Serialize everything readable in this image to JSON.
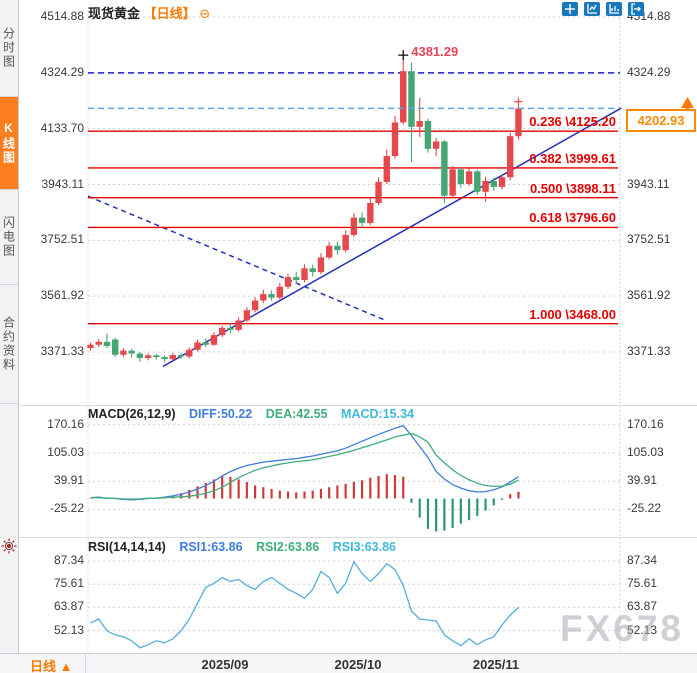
{
  "app": {
    "sidebar": {
      "items": [
        {
          "label": "分时图",
          "active": false
        },
        {
          "label": "K线图",
          "active": true
        },
        {
          "label": "闪电图",
          "active": false
        },
        {
          "label": "合约资料",
          "active": false
        }
      ]
    },
    "header": {
      "symbol": "现货黄金",
      "period": "【日线】",
      "collapse_icon": "⊖"
    },
    "toolbar_icons": [
      "move-icon",
      "axis-scale-icon",
      "axis-fit-icon",
      "exit-right-icon"
    ],
    "price_marker": {
      "value": "4202.93"
    },
    "bottom_bar": {
      "period_label": "日线",
      "period_arrow": "▲"
    },
    "watermark": "FX678",
    "colors": {
      "up": "#e5484d",
      "down": "#44a673",
      "accent": "#ff7a00",
      "fib": "#e60000",
      "navy_line": "#1f1fd0",
      "current_line": "#58a6e8",
      "diff_line": "#3f7de0",
      "dea_line": "#3eae7c",
      "rsi_line": "#54aede",
      "hist_pos": "#cc3b3b",
      "hist_neg": "#2f9478"
    }
  },
  "chart_data": {
    "type": "candlestick",
    "title": "现货黄金 日线",
    "price_axis": {
      "ticks": [
        4514.88,
        4324.29,
        4133.7,
        3943.11,
        3752.51,
        3561.92,
        3371.33
      ],
      "ylim": [
        3371.33,
        4514.88
      ]
    },
    "x_axis": {
      "labels": [
        "2025/09",
        "2025/10",
        "2025/11"
      ]
    },
    "candles": [
      [
        3385,
        3404,
        3376,
        3396
      ],
      [
        3396,
        3416,
        3388,
        3406
      ],
      [
        3406,
        3434,
        3384,
        3392
      ],
      [
        3414,
        3420,
        3355,
        3362
      ],
      [
        3362,
        3385,
        3356,
        3376
      ],
      [
        3376,
        3382,
        3352,
        3366
      ],
      [
        3366,
        3372,
        3338,
        3351
      ],
      [
        3351,
        3367,
        3343,
        3360
      ],
      [
        3360,
        3365,
        3345,
        3354
      ],
      [
        3354,
        3360,
        3336,
        3347
      ],
      [
        3347,
        3369,
        3341,
        3361
      ],
      [
        3361,
        3367,
        3348,
        3356
      ],
      [
        3356,
        3387,
        3350,
        3379
      ],
      [
        3379,
        3414,
        3373,
        3404
      ],
      [
        3404,
        3417,
        3389,
        3396
      ],
      [
        3396,
        3439,
        3392,
        3429
      ],
      [
        3429,
        3461,
        3422,
        3454
      ],
      [
        3454,
        3469,
        3437,
        3447
      ],
      [
        3447,
        3489,
        3441,
        3479
      ],
      [
        3479,
        3524,
        3473,
        3514
      ],
      [
        3514,
        3559,
        3507,
        3547
      ],
      [
        3547,
        3584,
        3539,
        3569
      ],
      [
        3569,
        3581,
        3547,
        3557
      ],
      [
        3557,
        3607,
        3551,
        3594
      ],
      [
        3594,
        3639,
        3587,
        3627
      ],
      [
        3627,
        3644,
        3604,
        3617
      ],
      [
        3617,
        3671,
        3609,
        3657
      ],
      [
        3657,
        3669,
        3629,
        3644
      ],
      [
        3644,
        3709,
        3637,
        3694
      ],
      [
        3694,
        3747,
        3687,
        3734
      ],
      [
        3734,
        3749,
        3704,
        3719
      ],
      [
        3719,
        3787,
        3711,
        3771
      ],
      [
        3771,
        3845,
        3764,
        3830
      ],
      [
        3830,
        3848,
        3795,
        3812
      ],
      [
        3812,
        3895,
        3805,
        3880
      ],
      [
        3880,
        3968,
        3872,
        3952
      ],
      [
        3952,
        4062,
        3944,
        4040
      ],
      [
        4040,
        4178,
        4032,
        4155
      ],
      [
        4155,
        4381.29,
        4148,
        4330
      ],
      [
        4330,
        4360,
        4020,
        4140
      ],
      [
        4140,
        4238,
        4105,
        4160
      ],
      [
        4160,
        4168,
        4052,
        4065
      ],
      [
        4065,
        4102,
        4040,
        4090
      ],
      [
        4090,
        4095,
        3880,
        3905
      ],
      [
        3905,
        4006,
        3896,
        3995
      ],
      [
        3995,
        4002,
        3932,
        3945
      ],
      [
        3945,
        3998,
        3938,
        3988
      ],
      [
        3988,
        3994,
        3908,
        3918
      ],
      [
        3918,
        3970,
        3884,
        3955
      ],
      [
        3955,
        3966,
        3922,
        3935
      ],
      [
        3935,
        3978,
        3926,
        3968
      ],
      [
        3968,
        4120,
        3958,
        4108
      ],
      [
        4108,
        4212,
        4096,
        4202.93
      ]
    ],
    "fib_levels": [
      {
        "label": "0.236 \\4125.20",
        "price": 4125.2
      },
      {
        "label": "0.382 \\3999.61",
        "price": 3999.61
      },
      {
        "label": "0.500 \\3898.11",
        "price": 3898.11
      },
      {
        "label": "0.618 \\3796.60",
        "price": 3796.6
      },
      {
        "label": "1.000 \\3468.00",
        "price": 3468.0
      }
    ],
    "levels": {
      "navy_dashed_price": 4324.29,
      "current_price": 4202.93
    },
    "peak_annotation": {
      "text": "4381.29",
      "index": 38,
      "price": 4381.29
    },
    "trendlines": [
      {
        "style": "solid",
        "from": {
          "index": 8.8,
          "price": 3322
        },
        "to": {
          "index": 64.5,
          "price": 4204
        }
      },
      {
        "style": "dashed",
        "from": {
          "index": -0.3,
          "price": 3903
        },
        "to": {
          "index": 35.8,
          "price": 3480
        }
      }
    ],
    "macd": {
      "legend": {
        "name": "MACD(26,12,9)",
        "diff": "DIFF:50.22",
        "dea": "DEA:42.55",
        "macd": "MACD:15.34"
      },
      "axis_ticks": [
        170.16,
        105.03,
        39.91,
        -25.22
      ],
      "diff": [
        2,
        3,
        1,
        0,
        -2,
        -3,
        -2,
        0,
        1,
        3,
        6,
        10,
        15,
        22,
        30,
        40,
        52,
        62,
        70,
        76,
        80,
        84,
        86,
        88,
        90,
        92,
        95,
        98,
        102,
        106,
        110,
        116,
        124,
        132,
        140,
        148,
        155,
        162,
        168,
        145,
        120,
        95,
        62,
        45,
        32,
        24,
        18,
        15,
        16,
        20,
        27,
        38,
        50.22
      ],
      "dea": [
        1.5,
        2,
        0.5,
        0.5,
        -1,
        -1.5,
        -1,
        0.5,
        0.5,
        2,
        3,
        4,
        5,
        8,
        12,
        18,
        26,
        37,
        48,
        57,
        65,
        71,
        75,
        79,
        82,
        85,
        87,
        89,
        93,
        97,
        101,
        106,
        111,
        117,
        123,
        129,
        135,
        142,
        146,
        150,
        142,
        130,
        100,
        82,
        66,
        53,
        43,
        35,
        30,
        28,
        28.5,
        33,
        42.55
      ],
      "hist": [
        1,
        2,
        1,
        -1,
        -2,
        -3,
        -2,
        -1,
        1,
        2,
        6,
        12,
        20,
        28,
        36,
        44,
        52,
        50,
        44,
        38,
        30,
        26,
        22,
        18,
        16,
        14,
        16,
        18,
        22,
        26,
        30,
        34,
        38,
        42,
        48,
        52,
        56,
        54,
        50,
        -10,
        -44,
        -70,
        -76,
        -74,
        -68,
        -58,
        -50,
        -40,
        -28,
        -16,
        -3,
        10,
        15.34
      ]
    },
    "rsi": {
      "legend": {
        "name": "RSI(14,14,14)",
        "rsi1": "RSI1:63.86",
        "rsi2": "RSI2:63.86",
        "rsi3": "RSI3:63.86"
      },
      "axis_ticks": [
        87.34,
        75.61,
        63.87,
        52.13
      ],
      "values": [
        56,
        58,
        52,
        50,
        49,
        47,
        43.5,
        45,
        47,
        46,
        48,
        52,
        58,
        66,
        74,
        76,
        79,
        77,
        78,
        75,
        73,
        77,
        79,
        76,
        73,
        71,
        68.5,
        73,
        82,
        79,
        71,
        76,
        87,
        81,
        77,
        81,
        86,
        83,
        75,
        62,
        58,
        57.5,
        57,
        50,
        47,
        44.5,
        48,
        45,
        47.5,
        49,
        55,
        60,
        63.86
      ]
    }
  }
}
